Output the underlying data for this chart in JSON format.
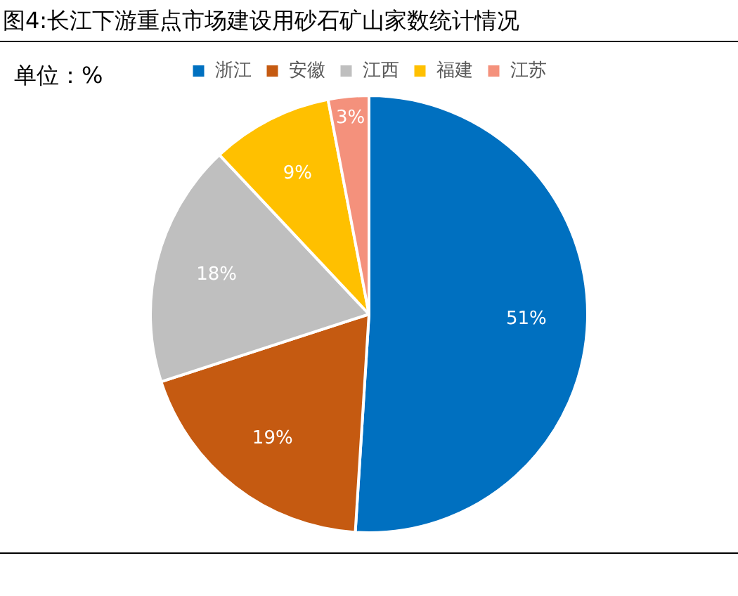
{
  "chart_data": {
    "type": "pie",
    "title": "图4:长江下游重点市场建设用砂石矿山家数统计情况",
    "subtitle": "单位：%",
    "categories": [
      "浙江",
      "安徽",
      "江西",
      "福建",
      "江苏"
    ],
    "values": [
      51,
      19,
      18,
      9,
      3
    ],
    "colors": [
      "#0070c0",
      "#c55a11",
      "#bfbfbf",
      "#ffc000",
      "#f4917c"
    ],
    "value_labels": [
      "51%",
      "19%",
      "18%",
      "9%",
      "3%"
    ],
    "legend": "top"
  }
}
